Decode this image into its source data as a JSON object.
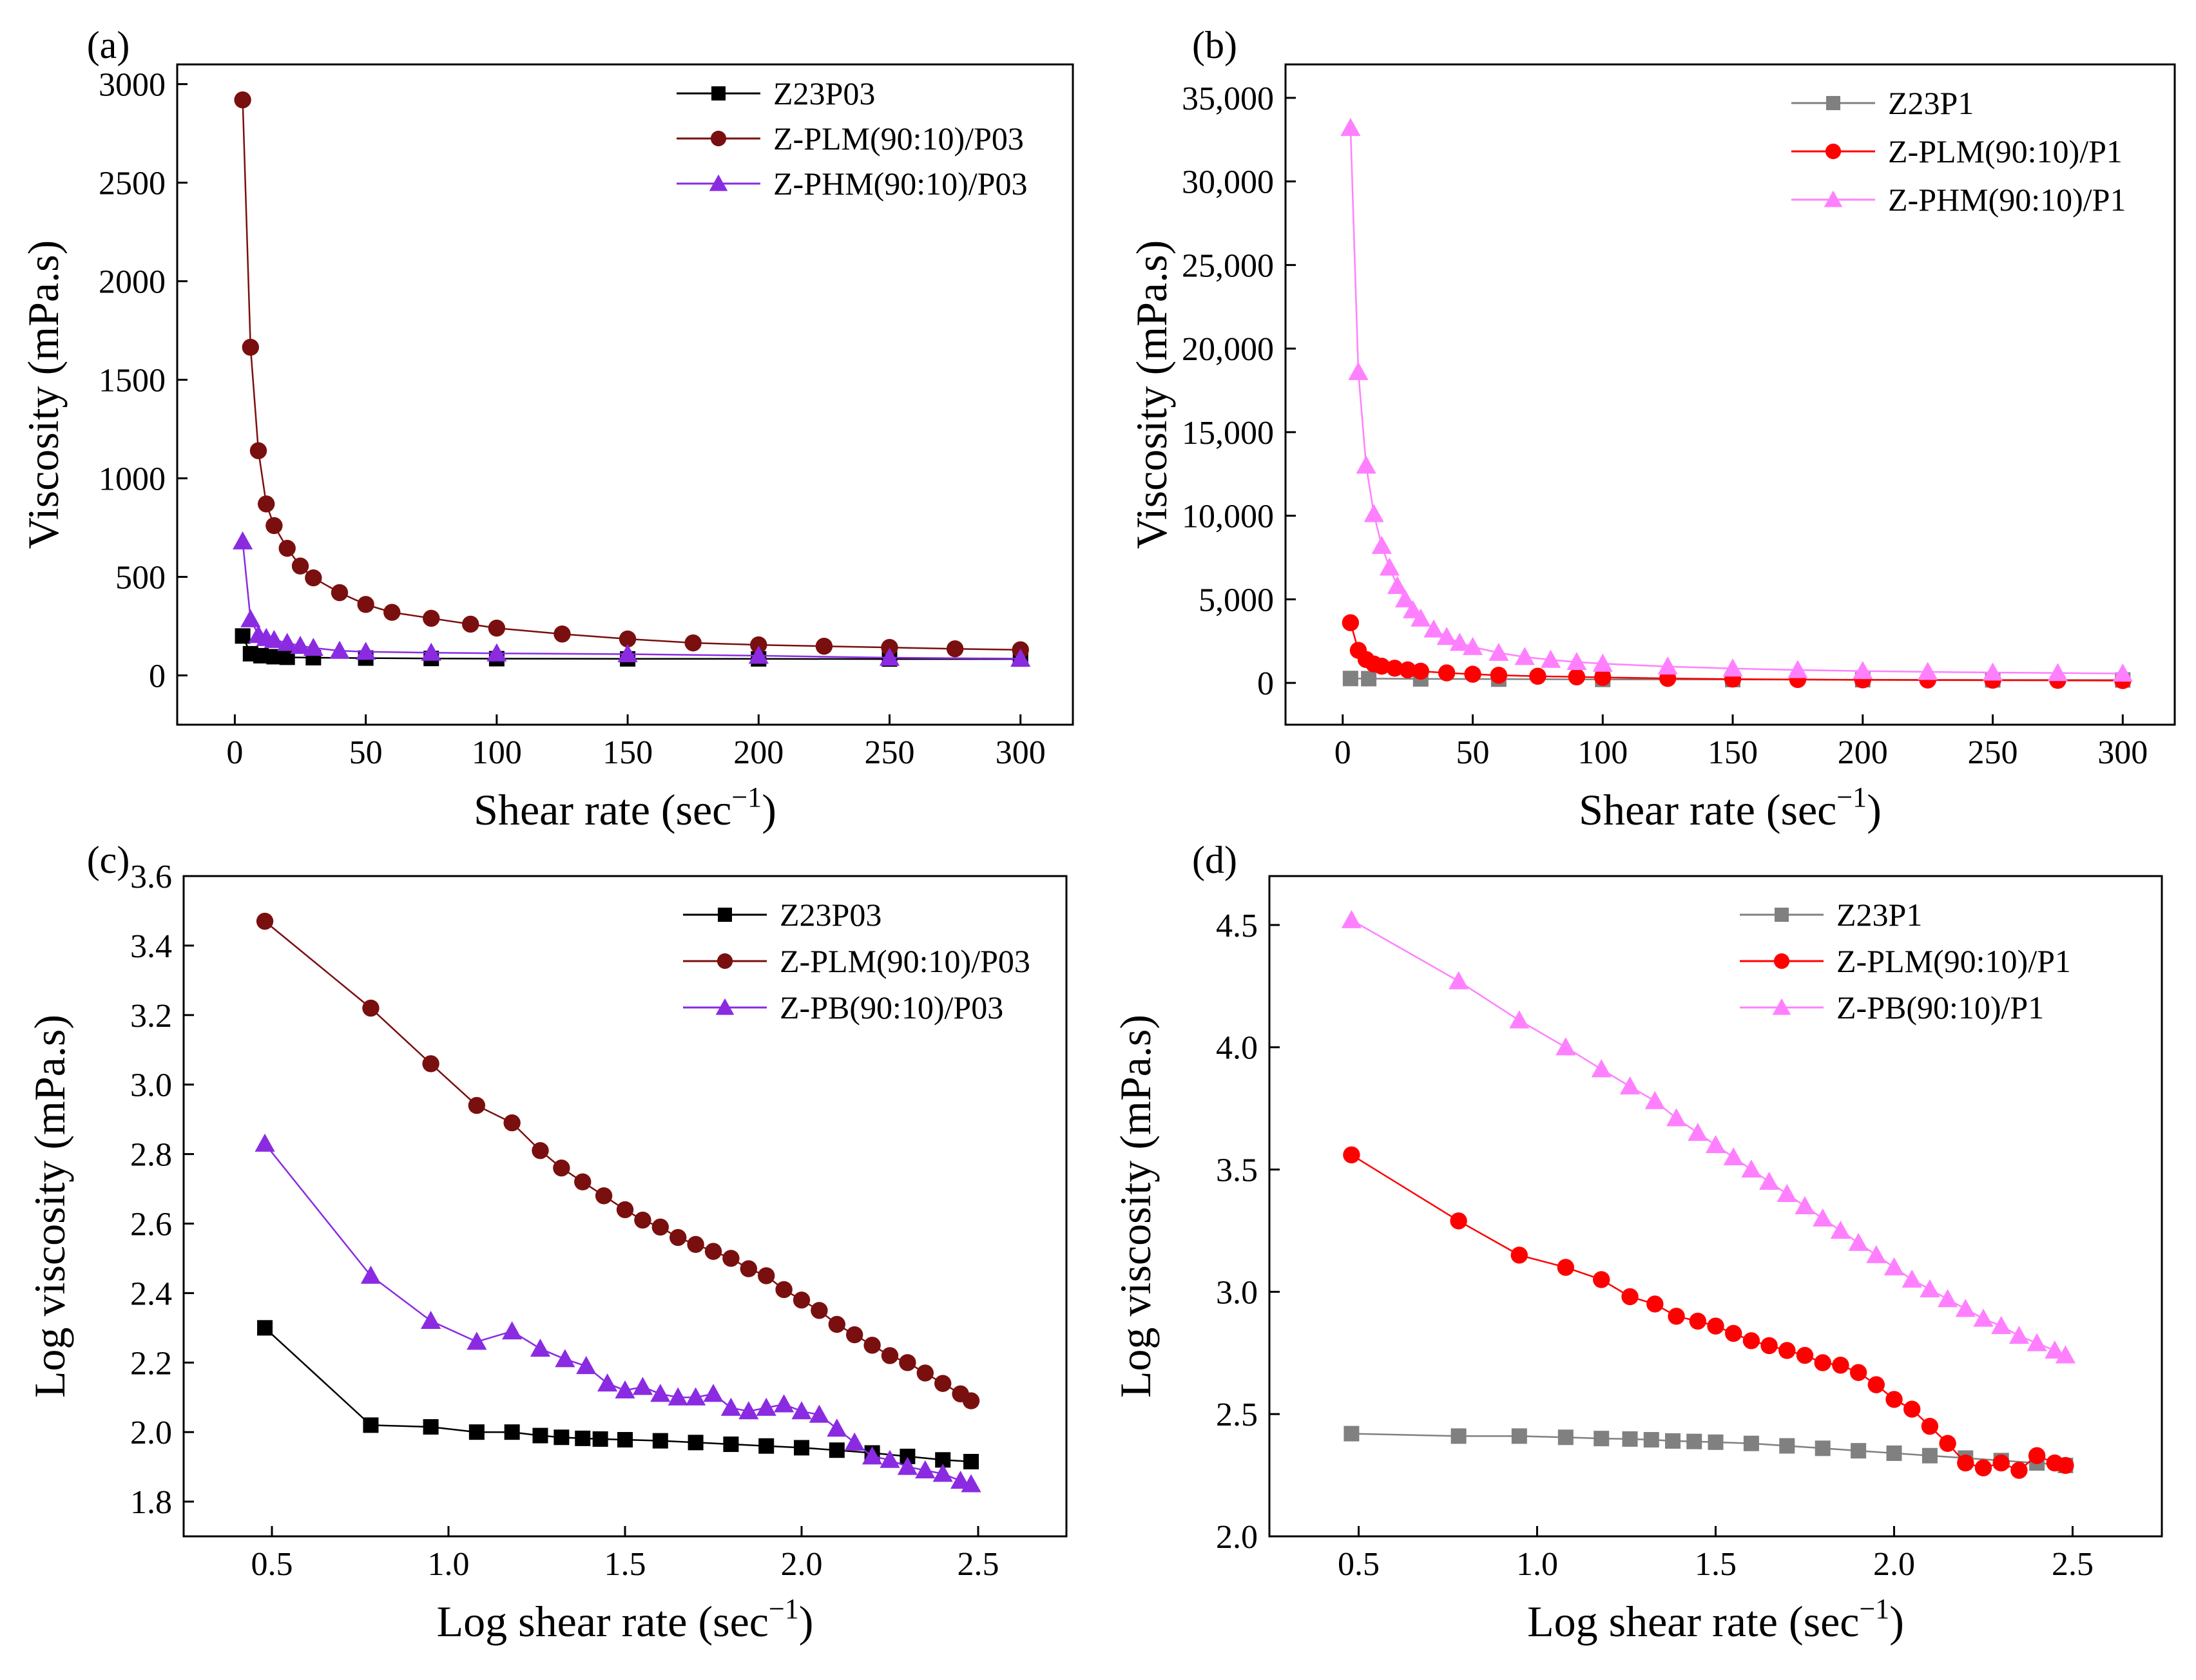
{
  "chart_data": [
    {
      "panel": "(a)",
      "type": "line",
      "xlabel": "Shear rate (sec",
      "xlabel_sup": "−1",
      "xlabel_close": ")",
      "ylabel": "Viscosity (mPa.s)",
      "xlim": [
        -22,
        320
      ],
      "ylim": [
        -250,
        3100
      ],
      "xticks": [
        0,
        50,
        100,
        150,
        200,
        250,
        300
      ],
      "xtick_labels": [
        "0",
        "50",
        "100",
        "150",
        "200",
        "250",
        "300"
      ],
      "yticks": [
        0,
        500,
        1000,
        1500,
        2000,
        2500,
        3000
      ],
      "ytick_labels": [
        "0",
        "500",
        "1000",
        "1500",
        "2000",
        "2500",
        "3000"
      ],
      "legend_position": "top-right",
      "series": [
        {
          "name": "Z23P03",
          "color": "#000000",
          "marker": "square",
          "x": [
            3,
            6,
            10,
            15,
            20,
            30,
            50,
            75,
            100,
            150,
            200,
            250,
            300
          ],
          "y": [
            200,
            110,
            100,
            95,
            92,
            90,
            88,
            86,
            85,
            84,
            84,
            83,
            83
          ]
        },
        {
          "name": "Z-PLM(90:10)/P03",
          "color": "#7a0f0f",
          "marker": "circle",
          "x": [
            3,
            6,
            9,
            12,
            15,
            20,
            25,
            30,
            40,
            50,
            60,
            75,
            90,
            100,
            125,
            150,
            175,
            200,
            225,
            250,
            275,
            300
          ],
          "y": [
            2920,
            1665,
            1140,
            870,
            760,
            645,
            555,
            495,
            420,
            360,
            320,
            290,
            260,
            240,
            210,
            185,
            165,
            155,
            148,
            142,
            135,
            130
          ]
        },
        {
          "name": "Z-PHM(90:10)/P03",
          "color": "#8a2be2",
          "marker": "triangle",
          "x": [
            3,
            6,
            9,
            12,
            15,
            20,
            25,
            30,
            40,
            50,
            75,
            100,
            150,
            200,
            250,
            300
          ],
          "y": [
            680,
            285,
            205,
            190,
            180,
            165,
            150,
            140,
            125,
            120,
            115,
            112,
            108,
            100,
            90,
            85
          ]
        }
      ]
    },
    {
      "panel": "(b)",
      "type": "line",
      "xlabel": "Shear rate (sec",
      "xlabel_sup": "−1",
      "xlabel_close": ")",
      "ylabel": "Viscosity (mPa.s)",
      "xlim": [
        -22,
        320
      ],
      "ylim": [
        -2500,
        37000
      ],
      "xticks": [
        0,
        50,
        100,
        150,
        200,
        250,
        300
      ],
      "xtick_labels": [
        "0",
        "50",
        "100",
        "150",
        "200",
        "250",
        "300"
      ],
      "yticks": [
        0,
        5000,
        10000,
        15000,
        20000,
        25000,
        30000,
        35000
      ],
      "ytick_labels": [
        "0",
        "5,000",
        "10,000",
        "15,000",
        "20,000",
        "25,000",
        "30,000",
        "35,000"
      ],
      "legend_position": "top-right",
      "series": [
        {
          "name": "Z23P1",
          "color": "#808080",
          "marker": "square",
          "x": [
            3,
            10,
            30,
            60,
            100,
            150,
            200,
            250,
            300
          ],
          "y": [
            265,
            255,
            240,
            225,
            210,
            200,
            190,
            180,
            175
          ]
        },
        {
          "name": "Z-PLM(90:10)/P1",
          "color": "#ff0000",
          "marker": "circle",
          "x": [
            3,
            6,
            9,
            12,
            15,
            20,
            25,
            30,
            40,
            50,
            60,
            75,
            90,
            100,
            125,
            150,
            175,
            200,
            225,
            250,
            275,
            300
          ],
          "y": [
            3600,
            1950,
            1400,
            1130,
            1000,
            880,
            780,
            700,
            600,
            520,
            460,
            400,
            360,
            330,
            270,
            230,
            200,
            180,
            170,
            160,
            150,
            140
          ]
        },
        {
          "name": "Z-PHM(90:10)/P1",
          "color": "#ff80ff",
          "marker": "triangle",
          "x": [
            3,
            6,
            9,
            12,
            15,
            18,
            21,
            24,
            27,
            30,
            35,
            40,
            45,
            50,
            60,
            70,
            80,
            90,
            100,
            125,
            150,
            175,
            200,
            225,
            250,
            275,
            300
          ],
          "y": [
            33200,
            18600,
            13000,
            10100,
            8200,
            6900,
            5800,
            5000,
            4350,
            3850,
            3200,
            2750,
            2400,
            2150,
            1800,
            1550,
            1380,
            1250,
            1150,
            980,
            860,
            770,
            710,
            660,
            620,
            590,
            560
          ]
        }
      ]
    },
    {
      "panel": "(c)",
      "type": "line",
      "xlabel": "Log shear rate (sec",
      "xlabel_sup": "−1",
      "xlabel_close": ")",
      "ylabel": "Log viscosity (mPa.s)",
      "xlim": [
        0.25,
        2.75
      ],
      "ylim": [
        1.7,
        3.6
      ],
      "xticks": [
        0.5,
        1.0,
        1.5,
        2.0,
        2.5
      ],
      "xtick_labels": [
        "0.5",
        "1.0",
        "1.5",
        "2.0",
        "2.5"
      ],
      "yticks": [
        1.8,
        2.0,
        2.2,
        2.4,
        2.6,
        2.8,
        3.0,
        3.2,
        3.4,
        3.6
      ],
      "ytick_labels": [
        "1.8",
        "2.0",
        "2.2",
        "2.4",
        "2.6",
        "2.8",
        "3.0",
        "3.2",
        "3.4",
        "3.6"
      ],
      "legend_position": "top-right",
      "series": [
        {
          "name": "Z23P03",
          "color": "#000000",
          "marker": "square",
          "x": [
            0.48,
            0.78,
            0.95,
            1.08,
            1.18,
            1.26,
            1.32,
            1.38,
            1.43,
            1.5,
            1.6,
            1.7,
            1.8,
            1.9,
            2.0,
            2.1,
            2.2,
            2.3,
            2.4,
            2.48
          ],
          "y": [
            2.3,
            2.02,
            2.015,
            2.0,
            2.0,
            1.99,
            1.985,
            1.982,
            1.98,
            1.978,
            1.975,
            1.97,
            1.965,
            1.96,
            1.955,
            1.948,
            1.94,
            1.93,
            1.92,
            1.915
          ]
        },
        {
          "name": "Z-PLM(90:10)/P03",
          "color": "#7a0f0f",
          "marker": "circle",
          "x": [
            0.48,
            0.78,
            0.95,
            1.08,
            1.18,
            1.26,
            1.32,
            1.38,
            1.44,
            1.5,
            1.55,
            1.6,
            1.65,
            1.7,
            1.75,
            1.8,
            1.85,
            1.9,
            1.95,
            2.0,
            2.05,
            2.1,
            2.15,
            2.2,
            2.25,
            2.3,
            2.35,
            2.4,
            2.45,
            2.48
          ],
          "y": [
            3.47,
            3.22,
            3.06,
            2.94,
            2.89,
            2.81,
            2.76,
            2.72,
            2.68,
            2.64,
            2.61,
            2.59,
            2.56,
            2.54,
            2.52,
            2.5,
            2.47,
            2.45,
            2.41,
            2.38,
            2.35,
            2.31,
            2.28,
            2.25,
            2.22,
            2.2,
            2.17,
            2.14,
            2.11,
            2.09
          ]
        },
        {
          "name": "Z-PB(90:10)/P03",
          "color": "#8a2be2",
          "marker": "triangle",
          "x": [
            0.48,
            0.78,
            0.95,
            1.08,
            1.18,
            1.26,
            1.33,
            1.39,
            1.45,
            1.5,
            1.55,
            1.6,
            1.65,
            1.7,
            1.75,
            1.8,
            1.85,
            1.9,
            1.95,
            2.0,
            2.05,
            2.1,
            2.15,
            2.2,
            2.25,
            2.3,
            2.35,
            2.4,
            2.45,
            2.48
          ],
          "y": [
            2.83,
            2.45,
            2.32,
            2.26,
            2.29,
            2.24,
            2.21,
            2.19,
            2.14,
            2.12,
            2.13,
            2.11,
            2.1,
            2.1,
            2.11,
            2.07,
            2.06,
            2.07,
            2.08,
            2.06,
            2.05,
            2.01,
            1.97,
            1.93,
            1.92,
            1.9,
            1.89,
            1.88,
            1.86,
            1.85
          ]
        }
      ]
    },
    {
      "panel": "(d)",
      "type": "line",
      "xlabel": "Log shear rate (sec",
      "xlabel_sup": "−1",
      "xlabel_close": ")",
      "ylabel": "Log viscosity (mPa.s)",
      "xlim": [
        0.25,
        2.75
      ],
      "ylim": [
        2.0,
        4.7
      ],
      "xticks": [
        0.5,
        1.0,
        1.5,
        2.0,
        2.5
      ],
      "xtick_labels": [
        "0.5",
        "1.0",
        "1.5",
        "2.0",
        "2.5"
      ],
      "yticks": [
        2.0,
        2.5,
        3.0,
        3.5,
        4.0,
        4.5
      ],
      "ytick_labels": [
        "2.0",
        "2.5",
        "3.0",
        "3.5",
        "4.0",
        "4.5"
      ],
      "legend_position": "top-right",
      "series": [
        {
          "name": "Z23P1",
          "color": "#808080",
          "marker": "square",
          "x": [
            0.48,
            0.78,
            0.95,
            1.08,
            1.18,
            1.26,
            1.32,
            1.38,
            1.44,
            1.5,
            1.6,
            1.7,
            1.8,
            1.9,
            2.0,
            2.1,
            2.2,
            2.3,
            2.4,
            2.48
          ],
          "y": [
            2.42,
            2.41,
            2.41,
            2.405,
            2.4,
            2.398,
            2.395,
            2.39,
            2.388,
            2.385,
            2.38,
            2.37,
            2.36,
            2.35,
            2.34,
            2.33,
            2.32,
            2.31,
            2.3,
            2.29
          ]
        },
        {
          "name": "Z-PLM(90:10)/P1",
          "color": "#ff0000",
          "marker": "circle",
          "x": [
            0.48,
            0.78,
            0.95,
            1.08,
            1.18,
            1.26,
            1.33,
            1.39,
            1.45,
            1.5,
            1.55,
            1.6,
            1.65,
            1.7,
            1.75,
            1.8,
            1.85,
            1.9,
            1.95,
            2.0,
            2.05,
            2.1,
            2.15,
            2.2,
            2.25,
            2.3,
            2.35,
            2.4,
            2.45,
            2.48
          ],
          "y": [
            3.56,
            3.29,
            3.15,
            3.1,
            3.05,
            2.98,
            2.95,
            2.9,
            2.88,
            2.86,
            2.83,
            2.8,
            2.78,
            2.76,
            2.74,
            2.71,
            2.7,
            2.67,
            2.62,
            2.56,
            2.52,
            2.45,
            2.38,
            2.3,
            2.28,
            2.3,
            2.27,
            2.33,
            2.3,
            2.29
          ]
        },
        {
          "name": "Z-PB(90:10)/P1",
          "color": "#ff80ff",
          "marker": "triangle",
          "x": [
            0.48,
            0.78,
            0.95,
            1.08,
            1.18,
            1.26,
            1.33,
            1.39,
            1.45,
            1.5,
            1.55,
            1.6,
            1.65,
            1.7,
            1.75,
            1.8,
            1.85,
            1.9,
            1.95,
            2.0,
            2.05,
            2.1,
            2.15,
            2.2,
            2.25,
            2.3,
            2.35,
            2.4,
            2.45,
            2.48
          ],
          "y": [
            4.52,
            4.27,
            4.11,
            4.0,
            3.91,
            3.84,
            3.78,
            3.71,
            3.65,
            3.6,
            3.55,
            3.5,
            3.45,
            3.4,
            3.35,
            3.3,
            3.25,
            3.2,
            3.15,
            3.1,
            3.05,
            3.01,
            2.97,
            2.93,
            2.89,
            2.86,
            2.82,
            2.79,
            2.76,
            2.74
          ]
        }
      ]
    }
  ]
}
